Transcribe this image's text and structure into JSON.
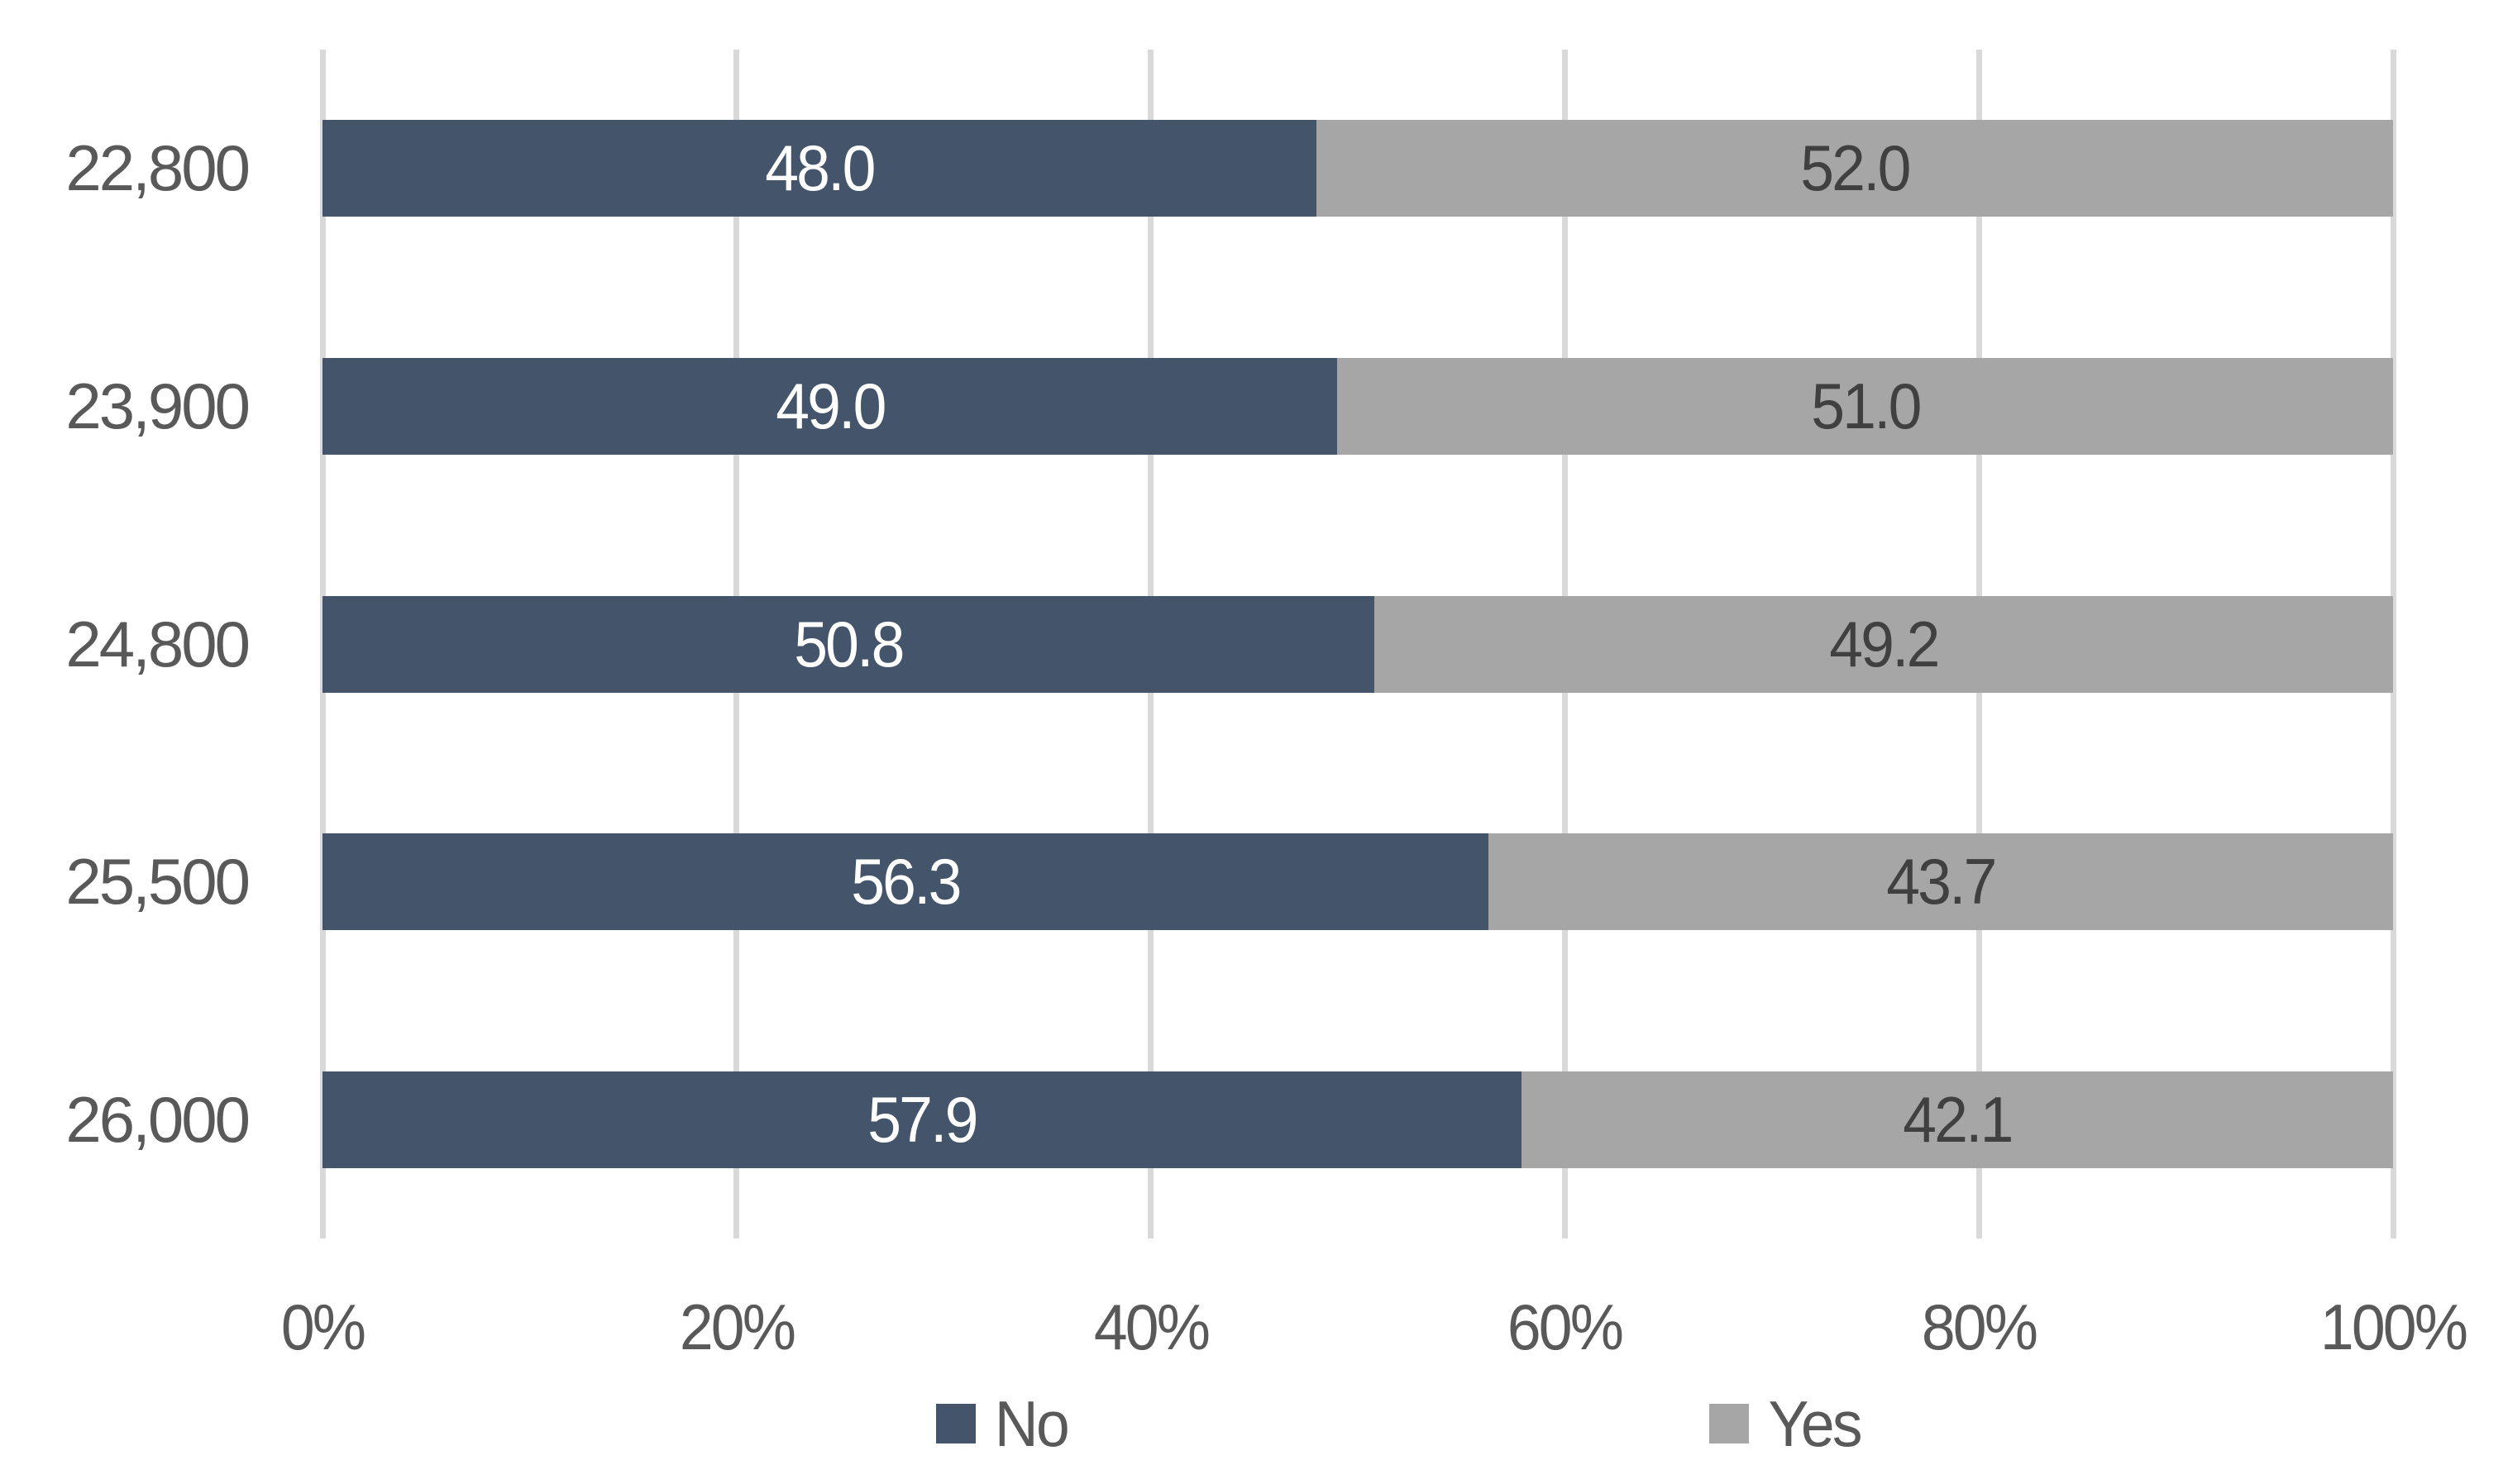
{
  "chart_data": {
    "type": "bar",
    "orientation": "horizontal-stacked",
    "title": "",
    "xlabel": "",
    "ylabel": "",
    "categories": [
      "22,800",
      "23,900",
      "24,800",
      "25,500",
      "26,000"
    ],
    "series": [
      {
        "name": "No",
        "color": "#44546A",
        "label_color": "#FFFFFF",
        "values": [
          48.0,
          49.0,
          50.8,
          56.3,
          57.9
        ],
        "labels": [
          "48.0",
          "49.0",
          "50.8",
          "56.3",
          "57.9"
        ]
      },
      {
        "name": "Yes",
        "color": "#A6A6A6",
        "label_color": "#404040",
        "values": [
          52.0,
          51.0,
          49.2,
          43.7,
          42.1
        ],
        "labels": [
          "52.0",
          "51.0",
          "49.2",
          "43.7",
          "42.1"
        ]
      }
    ],
    "x_axis": {
      "min": 0,
      "max": 100,
      "tick_step": 20,
      "tick_labels": [
        "0%",
        "20%",
        "40%",
        "60%",
        "80%",
        "100%"
      ]
    },
    "grid": true,
    "legend": {
      "position": "bottom",
      "entries": [
        "No",
        "Yes"
      ]
    },
    "colors": {
      "background": "#FFFFFF",
      "gridline": "#D9D9D9",
      "axis_text": "#595959",
      "category_text": "#595959",
      "legend_text": "#595959"
    }
  }
}
